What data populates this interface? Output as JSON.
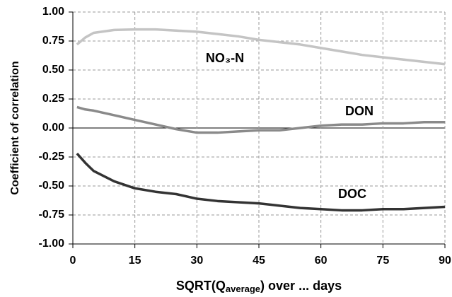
{
  "chart_data": {
    "type": "line",
    "xlabel": [
      "SQRT(Q",
      "average",
      ") over ... days"
    ],
    "ylabel": "Coefficient of correlation",
    "x": [
      1,
      3,
      5,
      10,
      15,
      20,
      25,
      30,
      35,
      40,
      45,
      50,
      55,
      60,
      65,
      70,
      75,
      80,
      85,
      90
    ],
    "series": [
      {
        "name": "NO₃-N",
        "color": "#c4c4c4",
        "values": [
          0.72,
          0.78,
          0.82,
          0.845,
          0.85,
          0.85,
          0.84,
          0.83,
          0.81,
          0.79,
          0.76,
          0.74,
          0.72,
          0.69,
          0.66,
          0.63,
          0.61,
          0.59,
          0.57,
          0.55
        ]
      },
      {
        "name": "DON",
        "color": "#8a8a8a",
        "values": [
          0.18,
          0.16,
          0.15,
          0.11,
          0.07,
          0.03,
          -0.01,
          -0.04,
          -0.04,
          -0.03,
          -0.02,
          -0.02,
          0.0,
          0.02,
          0.03,
          0.03,
          0.04,
          0.04,
          0.05,
          0.05
        ]
      },
      {
        "name": "DOC",
        "color": "#333333",
        "values": [
          -0.22,
          -0.3,
          -0.37,
          -0.46,
          -0.52,
          -0.55,
          -0.57,
          -0.61,
          -0.63,
          -0.64,
          -0.65,
          -0.67,
          -0.69,
          -0.7,
          -0.71,
          -0.71,
          -0.7,
          -0.7,
          -0.69,
          -0.68
        ]
      }
    ],
    "xlim": [
      0,
      90
    ],
    "xticks": [
      0,
      15,
      30,
      45,
      60,
      75,
      90
    ],
    "ylim": [
      -1,
      1
    ],
    "yticks": [
      {
        "value": 1,
        "label": "1.00"
      },
      {
        "value": 0.75,
        "label": "0.75"
      },
      {
        "value": 0.5,
        "label": "0.50"
      },
      {
        "value": 0.25,
        "label": "0.25"
      },
      {
        "value": 0,
        "label": "0.00"
      },
      {
        "value": -0.25,
        "label": "-0.25"
      },
      {
        "value": -0.5,
        "label": "-0.50"
      },
      {
        "value": -0.75,
        "label": "-0.75"
      },
      {
        "value": -1,
        "label": "-1.00"
      }
    ],
    "grid": true
  }
}
